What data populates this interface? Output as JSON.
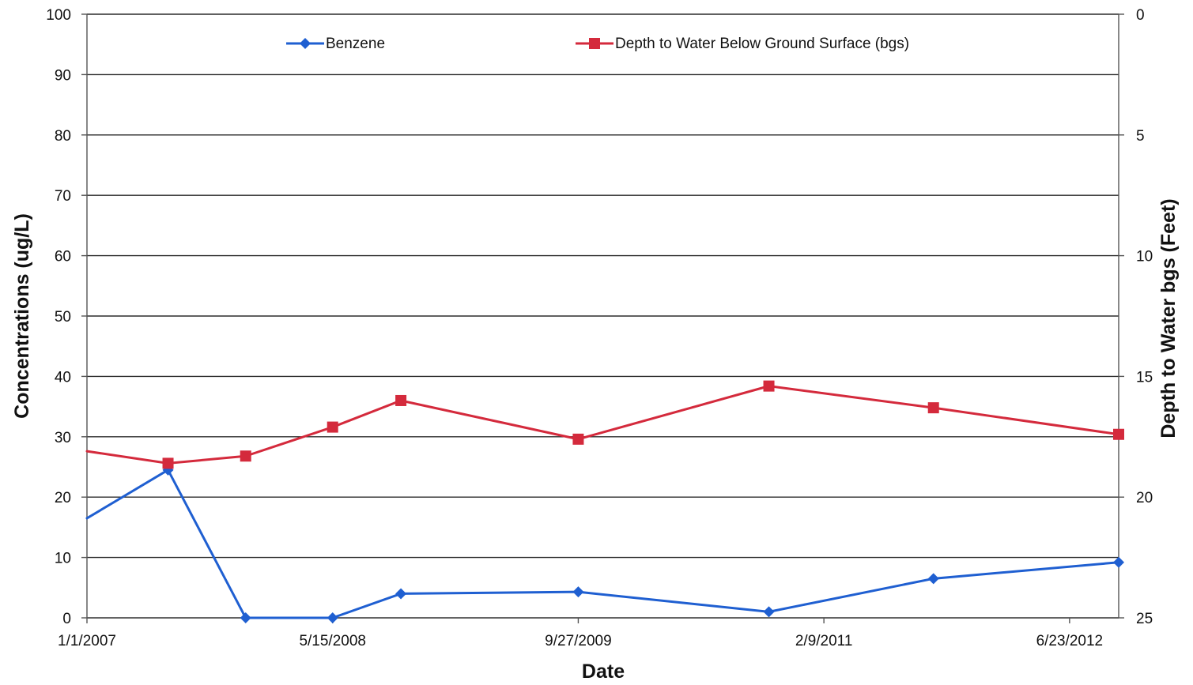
{
  "chart_data": {
    "type": "line",
    "title": "",
    "xlabel": "Date",
    "ylabel_left": "Concentrations (ug/L)",
    "ylabel_right": "Depth to Water bgs (Feet)",
    "x_tick_labels": [
      "1/1/2007",
      "5/15/2008",
      "9/27/2009",
      "2/9/2011",
      "6/23/2012"
    ],
    "x_range": [
      "2007-01-01",
      "2012-10-01"
    ],
    "left_axis": {
      "ylim": [
        0,
        100
      ],
      "ticks": [
        "0",
        "10",
        "20",
        "30",
        "40",
        "50",
        "60",
        "70",
        "80",
        "90",
        "100"
      ]
    },
    "right_axis": {
      "ylim": [
        0,
        25
      ],
      "reversed": true,
      "ticks": [
        "0",
        "5",
        "10",
        "15",
        "20",
        "25"
      ]
    },
    "grid": true,
    "legend_position": "top",
    "series": [
      {
        "name": "Benzene",
        "axis": "left",
        "color": "#1f5fd1",
        "marker": "diamond",
        "start_without_marker": true,
        "x": [
          "2007-01-01",
          "2007-06-15",
          "2007-11-20",
          "2008-05-15",
          "2008-10-01",
          "2009-09-27",
          "2010-10-20",
          "2011-09-20",
          "2012-10-01"
        ],
        "y": [
          16.5,
          24.5,
          0.0,
          0.0,
          4.0,
          4.3,
          1.0,
          6.5,
          9.2
        ]
      },
      {
        "name": "Depth to Water Below Ground Surface (bgs)",
        "axis": "right",
        "color": "#d42a3c",
        "marker": "square",
        "start_without_marker": true,
        "x": [
          "2007-01-01",
          "2007-06-15",
          "2007-11-20",
          "2008-05-15",
          "2008-10-01",
          "2009-09-27",
          "2010-10-20",
          "2011-09-20",
          "2012-10-01"
        ],
        "y": [
          18.1,
          18.6,
          18.3,
          17.1,
          16.0,
          17.6,
          15.4,
          16.3,
          17.4
        ]
      }
    ]
  }
}
